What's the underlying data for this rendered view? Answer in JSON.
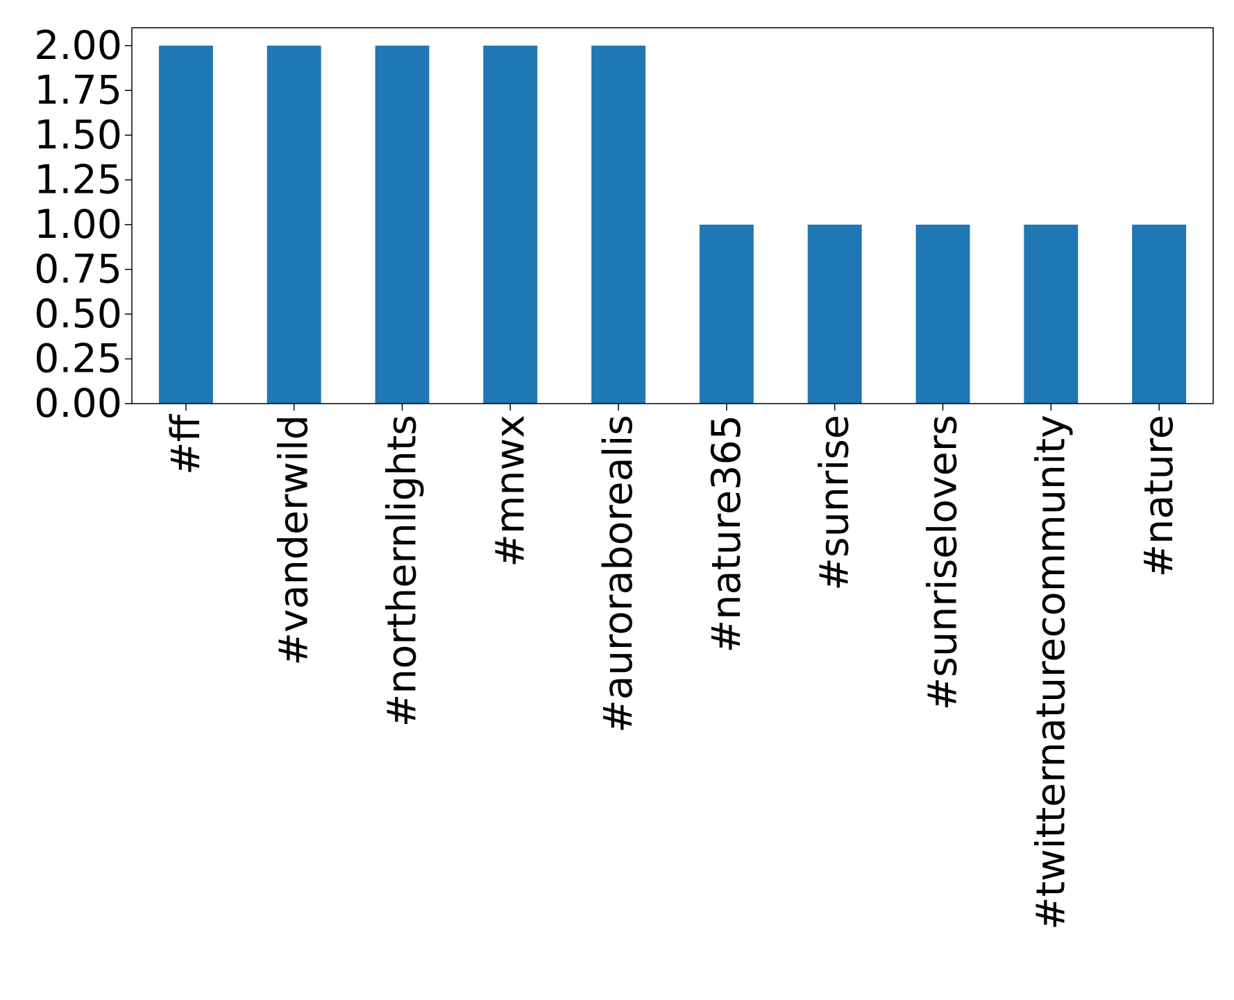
{
  "chart_data": {
    "type": "bar",
    "title": "",
    "xlabel": "",
    "ylabel": "",
    "categories": [
      "#ff",
      "#vanderwild",
      "#northernlights",
      "#mnwx",
      "#aurorabor ealis",
      "#nature365",
      "#sunrise",
      "#sunriselovers",
      "#twitternaturecommunity",
      "#nature"
    ],
    "values": [
      2,
      2,
      2,
      2,
      2,
      1,
      1,
      1,
      1,
      1
    ],
    "ylim": [
      0,
      2.1
    ],
    "yticks": [
      0.0,
      0.25,
      0.5,
      0.75,
      1.0,
      1.25,
      1.5,
      1.75,
      2.0
    ],
    "ytick_labels": [
      "0.00",
      "0.25",
      "0.50",
      "0.75",
      "1.00",
      "1.25",
      "1.50",
      "1.75",
      "2.00"
    ],
    "grid": false,
    "bar_color": "#1f77b4"
  }
}
